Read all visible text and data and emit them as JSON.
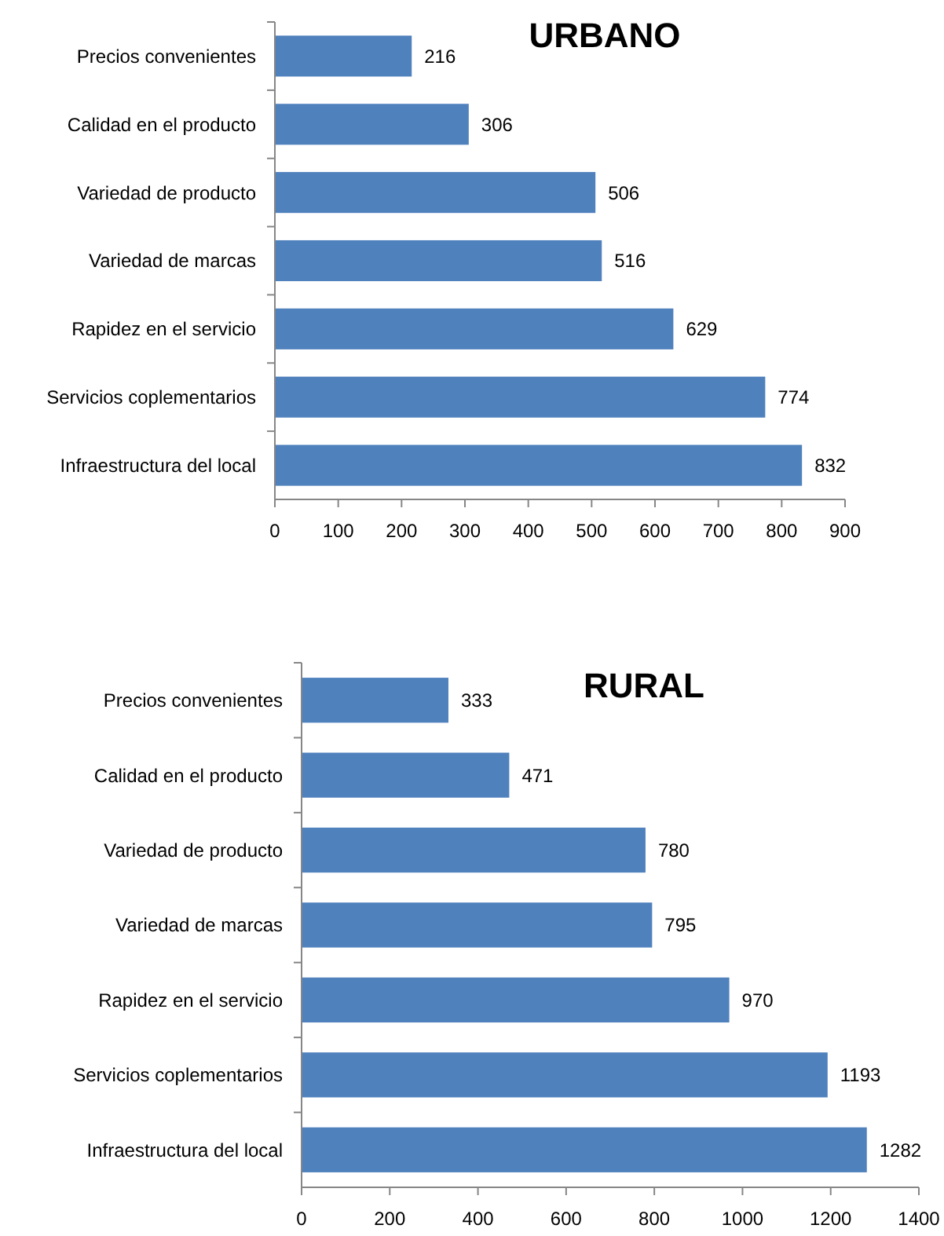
{
  "chart_data": [
    {
      "type": "bar",
      "title": "URBANO",
      "orientation": "horizontal",
      "categories": [
        "Precios convenientes",
        "Calidad en el producto",
        "Variedad de producto",
        "Variedad de marcas",
        "Rapidez en el servicio",
        "Servicios coplementarios",
        "Infraestructura del local"
      ],
      "values": [
        216,
        306,
        506,
        516,
        629,
        774,
        832
      ],
      "color": "#4f81bd",
      "xlim": [
        0,
        900
      ],
      "xticks": [
        0,
        100,
        200,
        300,
        400,
        500,
        600,
        700,
        800,
        900
      ],
      "data_labels": true
    },
    {
      "type": "bar",
      "title": "RURAL",
      "orientation": "horizontal",
      "categories": [
        "Precios convenientes",
        "Calidad en el producto",
        "Variedad de producto",
        "Variedad de marcas",
        "Rapidez en el servicio",
        "Servicios coplementarios",
        "Infraestructura del local"
      ],
      "values": [
        333,
        471,
        780,
        795,
        970,
        1193,
        1282
      ],
      "color": "#4f81bd",
      "xlim": [
        0,
        1400
      ],
      "xticks": [
        0,
        200,
        400,
        600,
        800,
        1000,
        1200,
        1400
      ],
      "data_labels": true
    }
  ]
}
